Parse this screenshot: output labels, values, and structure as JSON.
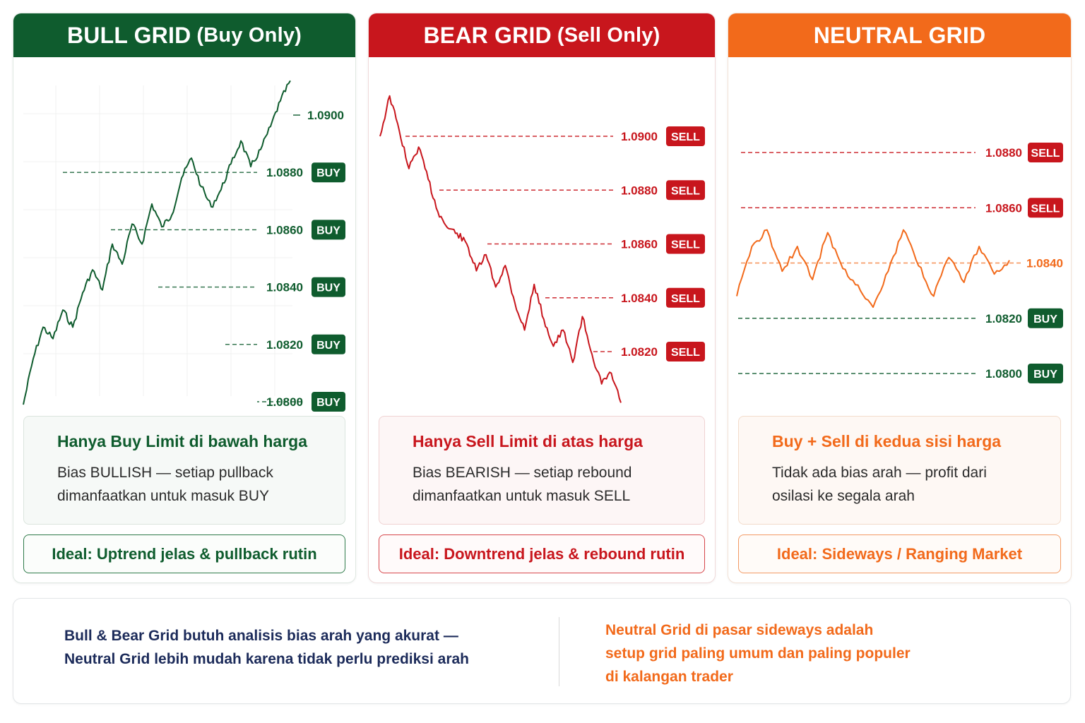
{
  "colors": {
    "bull": "#0f5c2e",
    "bear": "#c8161d",
    "neutral": "#f26a1b",
    "footer_left": "#1c2b5a"
  },
  "bull": {
    "title": "BULL GRID",
    "subtitle": "(Buy Only)",
    "desc_title": "Hanya Buy Limit di bawah harga",
    "desc_lines": [
      "Bias BULLISH — setiap pullback",
      "dimanfaatkan untuk masuk BUY"
    ],
    "ideal": "Ideal: Uptrend jelas & pullback rutin"
  },
  "bear": {
    "title": "BEAR GRID",
    "subtitle": "(Sell Only)",
    "desc_title": "Hanya Sell Limit di atas harga",
    "desc_lines": [
      "Bias BEARISH — setiap rebound",
      "dimanfaatkan untuk masuk SELL"
    ],
    "ideal": "Ideal: Downtrend jelas & rebound rutin"
  },
  "neutral": {
    "title": "NEUTRAL GRID",
    "subtitle": "",
    "desc_title": "Buy + Sell di kedua sisi harga",
    "desc_lines": [
      "Tidak ada bias arah — profit dari",
      "osilasi ke segala arah"
    ],
    "ideal": "Ideal: Sideways / Ranging Market"
  },
  "footer": {
    "left_lines": [
      "Bull & Bear Grid butuh analisis bias arah yang akurat —",
      "Neutral Grid lebih mudah karena tidak perlu prediksi arah"
    ],
    "right_lines": [
      "Neutral Grid di pasar sideways adalah",
      "setup grid paling umum dan paling populer",
      "di kalangan trader"
    ]
  },
  "chart_data": [
    {
      "type": "line",
      "name": "bull",
      "levels": [
        {
          "price": 1.09,
          "label": "1.0900",
          "badge": ""
        },
        {
          "price": 1.088,
          "label": "1.0880",
          "badge": "BUY"
        },
        {
          "price": 1.086,
          "label": "1.0860",
          "badge": "BUY"
        },
        {
          "price": 1.084,
          "label": "1.0840",
          "badge": "BUY"
        },
        {
          "price": 1.082,
          "label": "1.0820",
          "badge": "BUY"
        },
        {
          "price": 1.08,
          "label": "1.0800",
          "badge": "BUY"
        }
      ],
      "path_prices": [
        1.0799,
        1.0815,
        1.0826,
        1.0822,
        1.0832,
        1.0826,
        1.0838,
        1.0846,
        1.0839,
        1.0855,
        1.0848,
        1.0862,
        1.0855,
        1.0869,
        1.0861,
        1.0865,
        1.0878,
        1.0885,
        1.0875,
        1.0868,
        1.0874,
        1.0883,
        1.0891,
        1.0882,
        1.0888,
        1.0896,
        1.0905,
        1.0912
      ]
    },
    {
      "type": "line",
      "name": "bear",
      "levels": [
        {
          "price": 1.09,
          "label": "1.0900",
          "badge": "SELL"
        },
        {
          "price": 1.088,
          "label": "1.0880",
          "badge": "SELL"
        },
        {
          "price": 1.086,
          "label": "1.0860",
          "badge": "SELL"
        },
        {
          "price": 1.084,
          "label": "1.0840",
          "badge": "SELL"
        },
        {
          "price": 1.082,
          "label": "1.0820",
          "badge": "SELL"
        }
      ],
      "path_prices": [
        1.09,
        1.0915,
        1.0902,
        1.0888,
        1.0896,
        1.0884,
        1.0872,
        1.0866,
        1.0864,
        1.086,
        1.085,
        1.0856,
        1.0844,
        1.0852,
        1.0838,
        1.0828,
        1.0845,
        1.0832,
        1.0822,
        1.0828,
        1.0816,
        1.0833,
        1.0819,
        1.0808,
        1.0812,
        1.0801
      ]
    },
    {
      "type": "line",
      "name": "neutral",
      "levels": [
        {
          "price": 1.088,
          "label": "1.0880",
          "badge": "SELL"
        },
        {
          "price": 1.086,
          "label": "1.0860",
          "badge": "SELL"
        },
        {
          "price": 1.084,
          "label": "1.0840",
          "badge": ""
        },
        {
          "price": 1.082,
          "label": "1.0820",
          "badge": "BUY"
        },
        {
          "price": 1.08,
          "label": "1.0800",
          "badge": "BUY"
        }
      ],
      "path_prices": [
        1.0828,
        1.0846,
        1.0852,
        1.0837,
        1.0846,
        1.0834,
        1.0851,
        1.0838,
        1.0832,
        1.0824,
        1.0837,
        1.0852,
        1.0839,
        1.0828,
        1.0842,
        1.0833,
        1.0846,
        1.0836,
        1.0841
      ]
    }
  ]
}
